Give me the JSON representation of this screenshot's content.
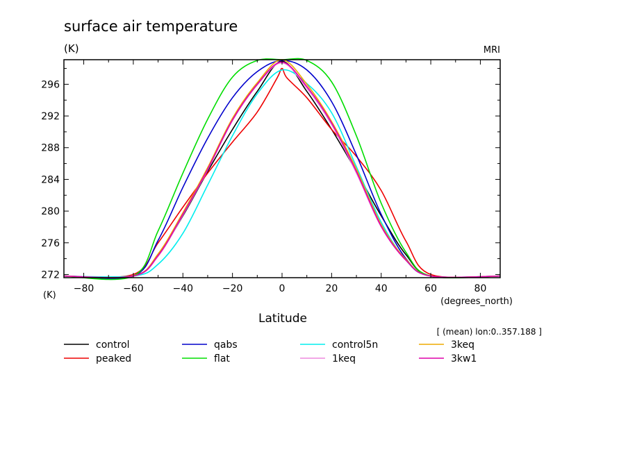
{
  "chart_data": {
    "type": "line",
    "title": "surface air temperature",
    "y_unit_top": "(K)",
    "y_unit_bottom": "(K)",
    "source": "MRI",
    "xlabel": "Latitude",
    "x_unit": "(degrees_north)",
    "note": "[ (mean) lon:0..357.188 ]",
    "xlim": [
      -88,
      88
    ],
    "ylim": [
      271.6,
      299.1
    ],
    "xticks": [
      -80,
      -60,
      -40,
      -20,
      0,
      20,
      40,
      60,
      80
    ],
    "yticks": [
      272,
      276,
      280,
      284,
      288,
      292,
      296
    ],
    "grid": false,
    "legend_position": "bottom",
    "series": [
      {
        "name": "control",
        "color": "#000000",
        "x": [
          -88,
          -60,
          -50,
          -40,
          -30,
          -20,
          -10,
          0,
          10,
          20,
          30,
          40,
          50,
          60,
          88
        ],
        "y": [
          271.8,
          271.8,
          274.5,
          279.4,
          285.0,
          290.3,
          295.1,
          298.9,
          295.1,
          290.3,
          285.0,
          279.4,
          274.5,
          271.8,
          271.8
        ]
      },
      {
        "name": "peaked",
        "color": "#ee0000",
        "x": [
          -88,
          -60,
          -50,
          -40,
          -30,
          -20,
          -10,
          -2,
          0,
          2,
          10,
          20,
          30,
          40,
          50,
          60,
          88
        ],
        "y": [
          271.8,
          272.0,
          276.0,
          280.5,
          284.8,
          288.7,
          292.5,
          296.8,
          298.0,
          296.8,
          294.3,
          290.3,
          286.9,
          282.6,
          276.2,
          272.0,
          271.8
        ]
      },
      {
        "name": "qabs",
        "color": "#0000cc",
        "x": [
          -88,
          -60,
          -50,
          -40,
          -30,
          -20,
          -10,
          0,
          10,
          20,
          30,
          40,
          50,
          60,
          88
        ],
        "y": [
          271.8,
          271.8,
          276.3,
          283.0,
          289.2,
          294.3,
          297.6,
          299.0,
          297.8,
          293.8,
          287.1,
          279.6,
          274.0,
          271.8,
          271.8
        ]
      },
      {
        "name": "flat",
        "color": "#00dd00",
        "x": [
          -88,
          -60,
          -50,
          -40,
          -30,
          -20,
          -10,
          0,
          10,
          20,
          30,
          40,
          50,
          60,
          88
        ],
        "y": [
          271.8,
          271.8,
          277.5,
          284.8,
          291.6,
          296.9,
          299.0,
          299.1,
          299.0,
          296.3,
          289.5,
          281.0,
          274.8,
          271.8,
          271.8
        ]
      },
      {
        "name": "control5n",
        "color": "#00eeee",
        "x": [
          -88,
          -60,
          -50,
          -40,
          -30,
          -20,
          -10,
          0,
          10,
          20,
          30,
          40,
          50,
          60,
          88
        ],
        "y": [
          271.8,
          271.8,
          273.3,
          277.2,
          283.3,
          289.5,
          294.8,
          297.8,
          296.1,
          292.4,
          285.6,
          278.6,
          273.8,
          271.8,
          271.8
        ]
      },
      {
        "name": "1keq",
        "color": "#ee88dd",
        "x": [
          -88,
          -60,
          -50,
          -40,
          -30,
          -20,
          -10,
          0,
          10,
          20,
          30,
          40,
          50,
          60,
          88
        ],
        "y": [
          271.8,
          271.8,
          274.3,
          279.5,
          285.2,
          291.4,
          295.9,
          298.7,
          295.5,
          290.9,
          284.8,
          278.0,
          273.8,
          271.8,
          271.8
        ]
      },
      {
        "name": "3keq",
        "color": "#eeaa00",
        "x": [
          -88,
          -60,
          -50,
          -40,
          -30,
          -20,
          -10,
          0,
          10,
          20,
          30,
          40,
          50,
          60,
          88
        ],
        "y": [
          271.8,
          271.8,
          274.6,
          279.8,
          285.5,
          291.7,
          296.2,
          299.1,
          296.0,
          291.3,
          285.3,
          278.3,
          273.9,
          271.8,
          271.8
        ]
      },
      {
        "name": "3kw1",
        "color": "#dd00aa",
        "x": [
          -88,
          -60,
          -50,
          -40,
          -30,
          -20,
          -10,
          0,
          10,
          20,
          30,
          40,
          50,
          60,
          88
        ],
        "y": [
          271.8,
          271.8,
          274.4,
          279.6,
          285.3,
          291.5,
          296.0,
          298.8,
          295.7,
          291.1,
          285.0,
          278.1,
          273.8,
          271.8,
          271.8
        ]
      }
    ]
  }
}
